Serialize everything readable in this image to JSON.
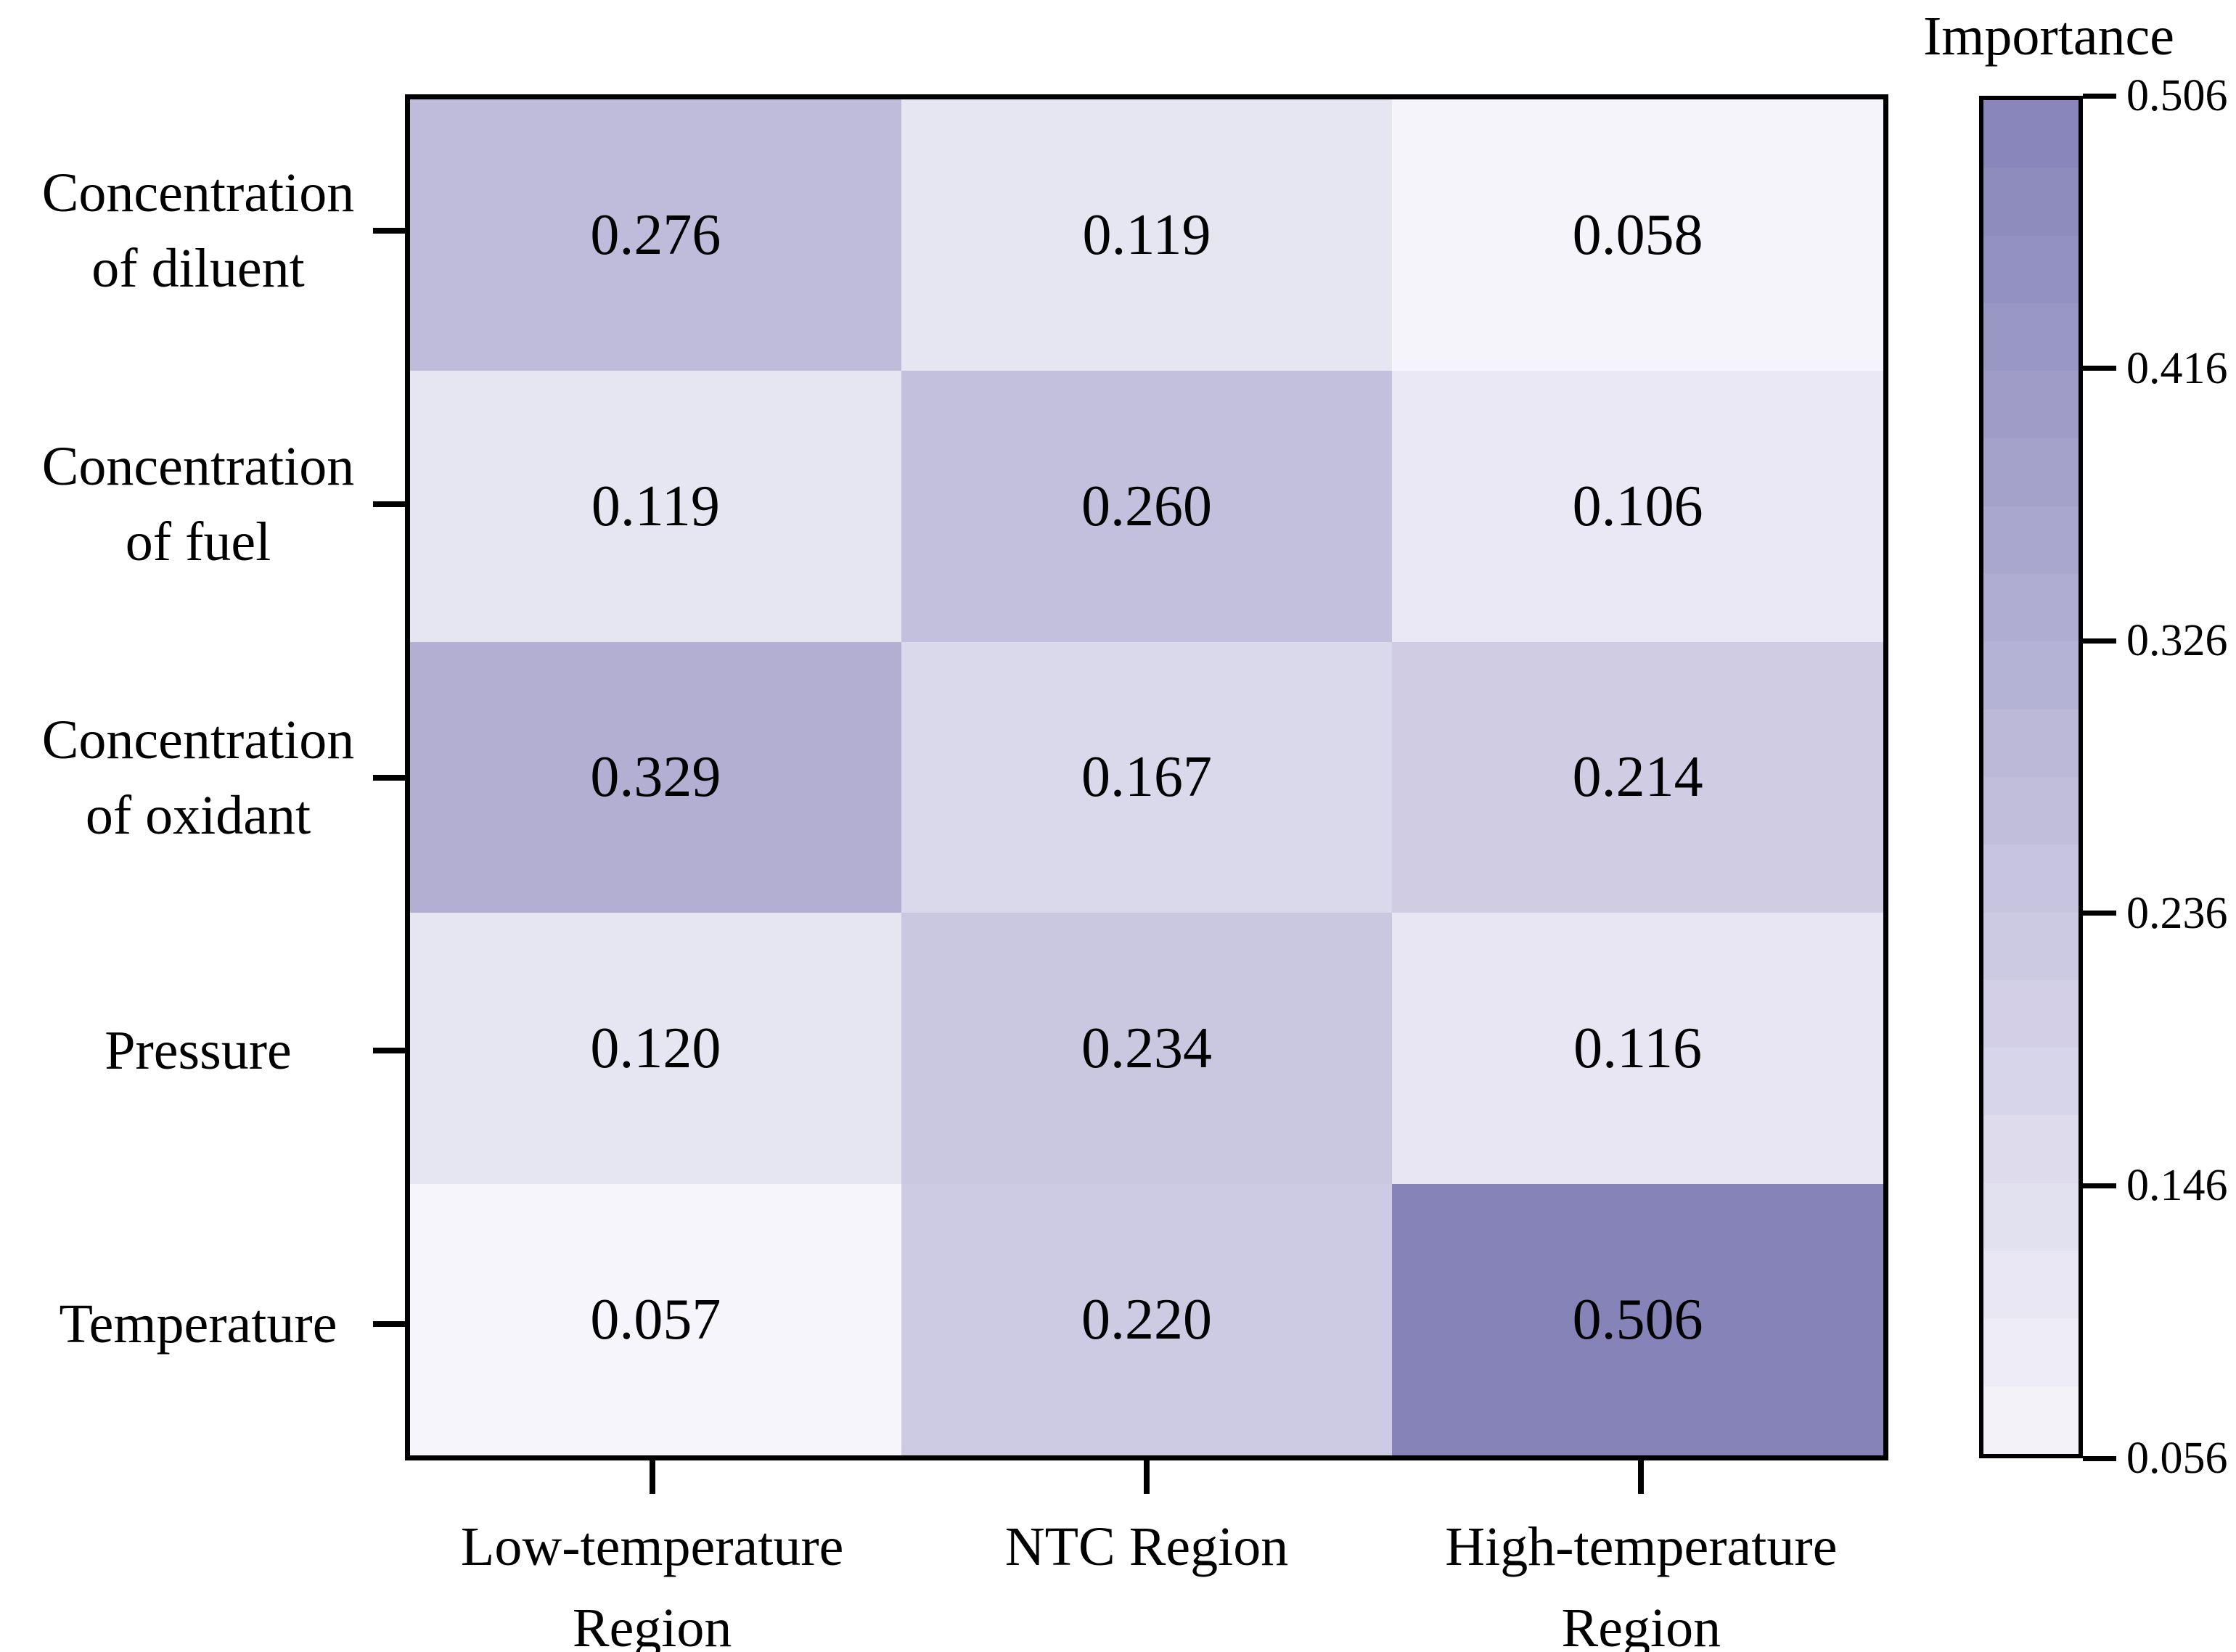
{
  "colorbar": {
    "title": "Importance",
    "tick_labels": [
      "0.506",
      "0.416",
      "0.326",
      "0.236",
      "0.146",
      "0.056"
    ],
    "vmin": 0.056,
    "vmax": 0.506,
    "colors": {
      "low": "#f6f5fb",
      "mid": "#bebbda",
      "high": "#8583b8"
    },
    "bands": 20
  },
  "chart_data": {
    "type": "heatmap",
    "title": "",
    "xlabel": "",
    "ylabel": "",
    "rows": [
      [
        "Concentration",
        "of diluent"
      ],
      [
        "Concentration",
        "of fuel"
      ],
      [
        "Concentration",
        "of oxidant"
      ],
      [
        "Pressure"
      ],
      [
        "Temperature"
      ]
    ],
    "columns": [
      [
        "Low-temperature",
        "Region"
      ],
      [
        "NTC Region"
      ],
      [
        "High-temperature",
        "Region"
      ]
    ],
    "values": [
      [
        0.276,
        0.119,
        0.058
      ],
      [
        0.119,
        0.26,
        0.106
      ],
      [
        0.329,
        0.167,
        0.214
      ],
      [
        0.12,
        0.234,
        0.116
      ],
      [
        0.057,
        0.22,
        0.506
      ]
    ],
    "cell_labels": [
      [
        "0.276",
        "0.119",
        "0.058"
      ],
      [
        "0.119",
        "0.260",
        "0.106"
      ],
      [
        "0.329",
        "0.167",
        "0.214"
      ],
      [
        "0.120",
        "0.234",
        "0.116"
      ],
      [
        "0.057",
        "0.220",
        "0.506"
      ]
    ],
    "legend_title": "Importance",
    "colorbar_range": [
      0.056,
      0.506
    ],
    "grid": false
  }
}
